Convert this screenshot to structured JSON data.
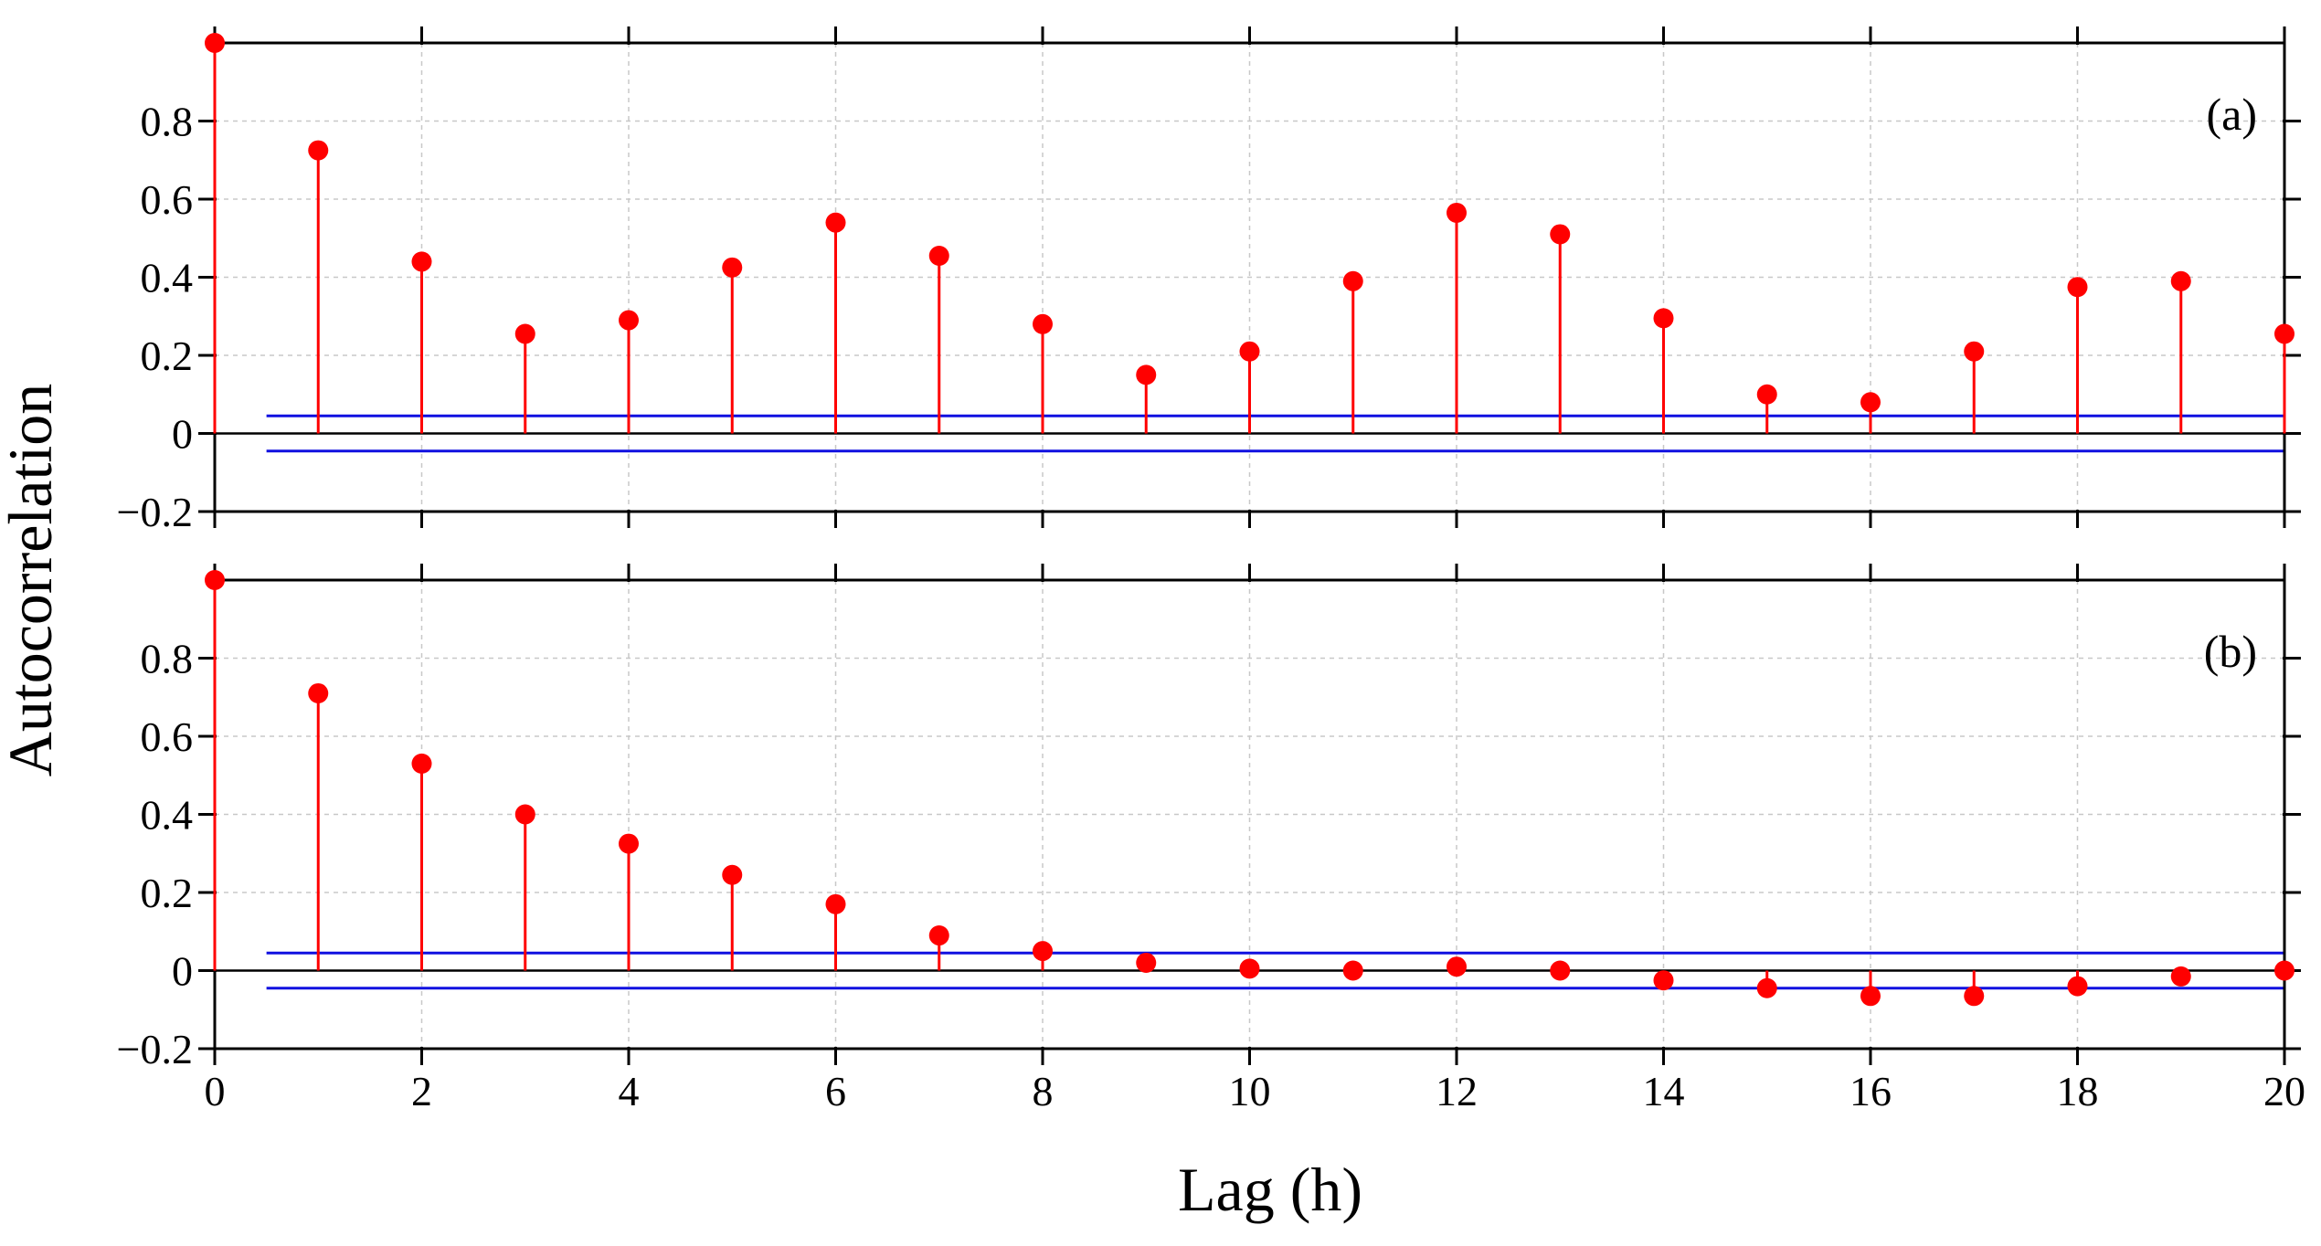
{
  "chart_data": {
    "type": "stem",
    "ylabel": "Autocorrelation",
    "xlabel": "Lag (h)",
    "xlim": [
      0,
      20
    ],
    "ylim": [
      -0.2,
      1.0
    ],
    "x_ticks": [
      0,
      2,
      4,
      6,
      8,
      10,
      12,
      14,
      16,
      18,
      20
    ],
    "y_ticks": [
      -0.2,
      0,
      0.2,
      0.4,
      0.6,
      0.8
    ],
    "y_tick_labels": [
      "−0.2",
      "0",
      "0.2",
      "0.4",
      "0.6",
      "0.8"
    ],
    "colors": {
      "stem": "#ff0000",
      "confidence": "#1010e0",
      "grid": "#c8c8c8"
    },
    "panels": [
      {
        "label": "(a)",
        "lags": [
          0,
          1,
          2,
          3,
          4,
          5,
          6,
          7,
          8,
          9,
          10,
          11,
          12,
          13,
          14,
          15,
          16,
          17,
          18,
          19,
          20
        ],
        "values": [
          1.0,
          0.725,
          0.44,
          0.255,
          0.29,
          0.425,
          0.54,
          0.455,
          0.28,
          0.15,
          0.21,
          0.39,
          0.565,
          0.51,
          0.295,
          0.1,
          0.08,
          0.21,
          0.375,
          0.39,
          0.255
        ],
        "confidence": [
          0.045,
          -0.045
        ]
      },
      {
        "label": "(b)",
        "lags": [
          0,
          1,
          2,
          3,
          4,
          5,
          6,
          7,
          8,
          9,
          10,
          11,
          12,
          13,
          14,
          15,
          16,
          17,
          18,
          19,
          20
        ],
        "values": [
          1.0,
          0.71,
          0.53,
          0.4,
          0.325,
          0.245,
          0.17,
          0.09,
          0.05,
          0.02,
          0.005,
          0.0,
          0.01,
          0.0,
          -0.025,
          -0.045,
          -0.065,
          -0.065,
          -0.04,
          -0.015,
          0.0
        ],
        "confidence": [
          0.045,
          -0.045
        ]
      }
    ]
  }
}
